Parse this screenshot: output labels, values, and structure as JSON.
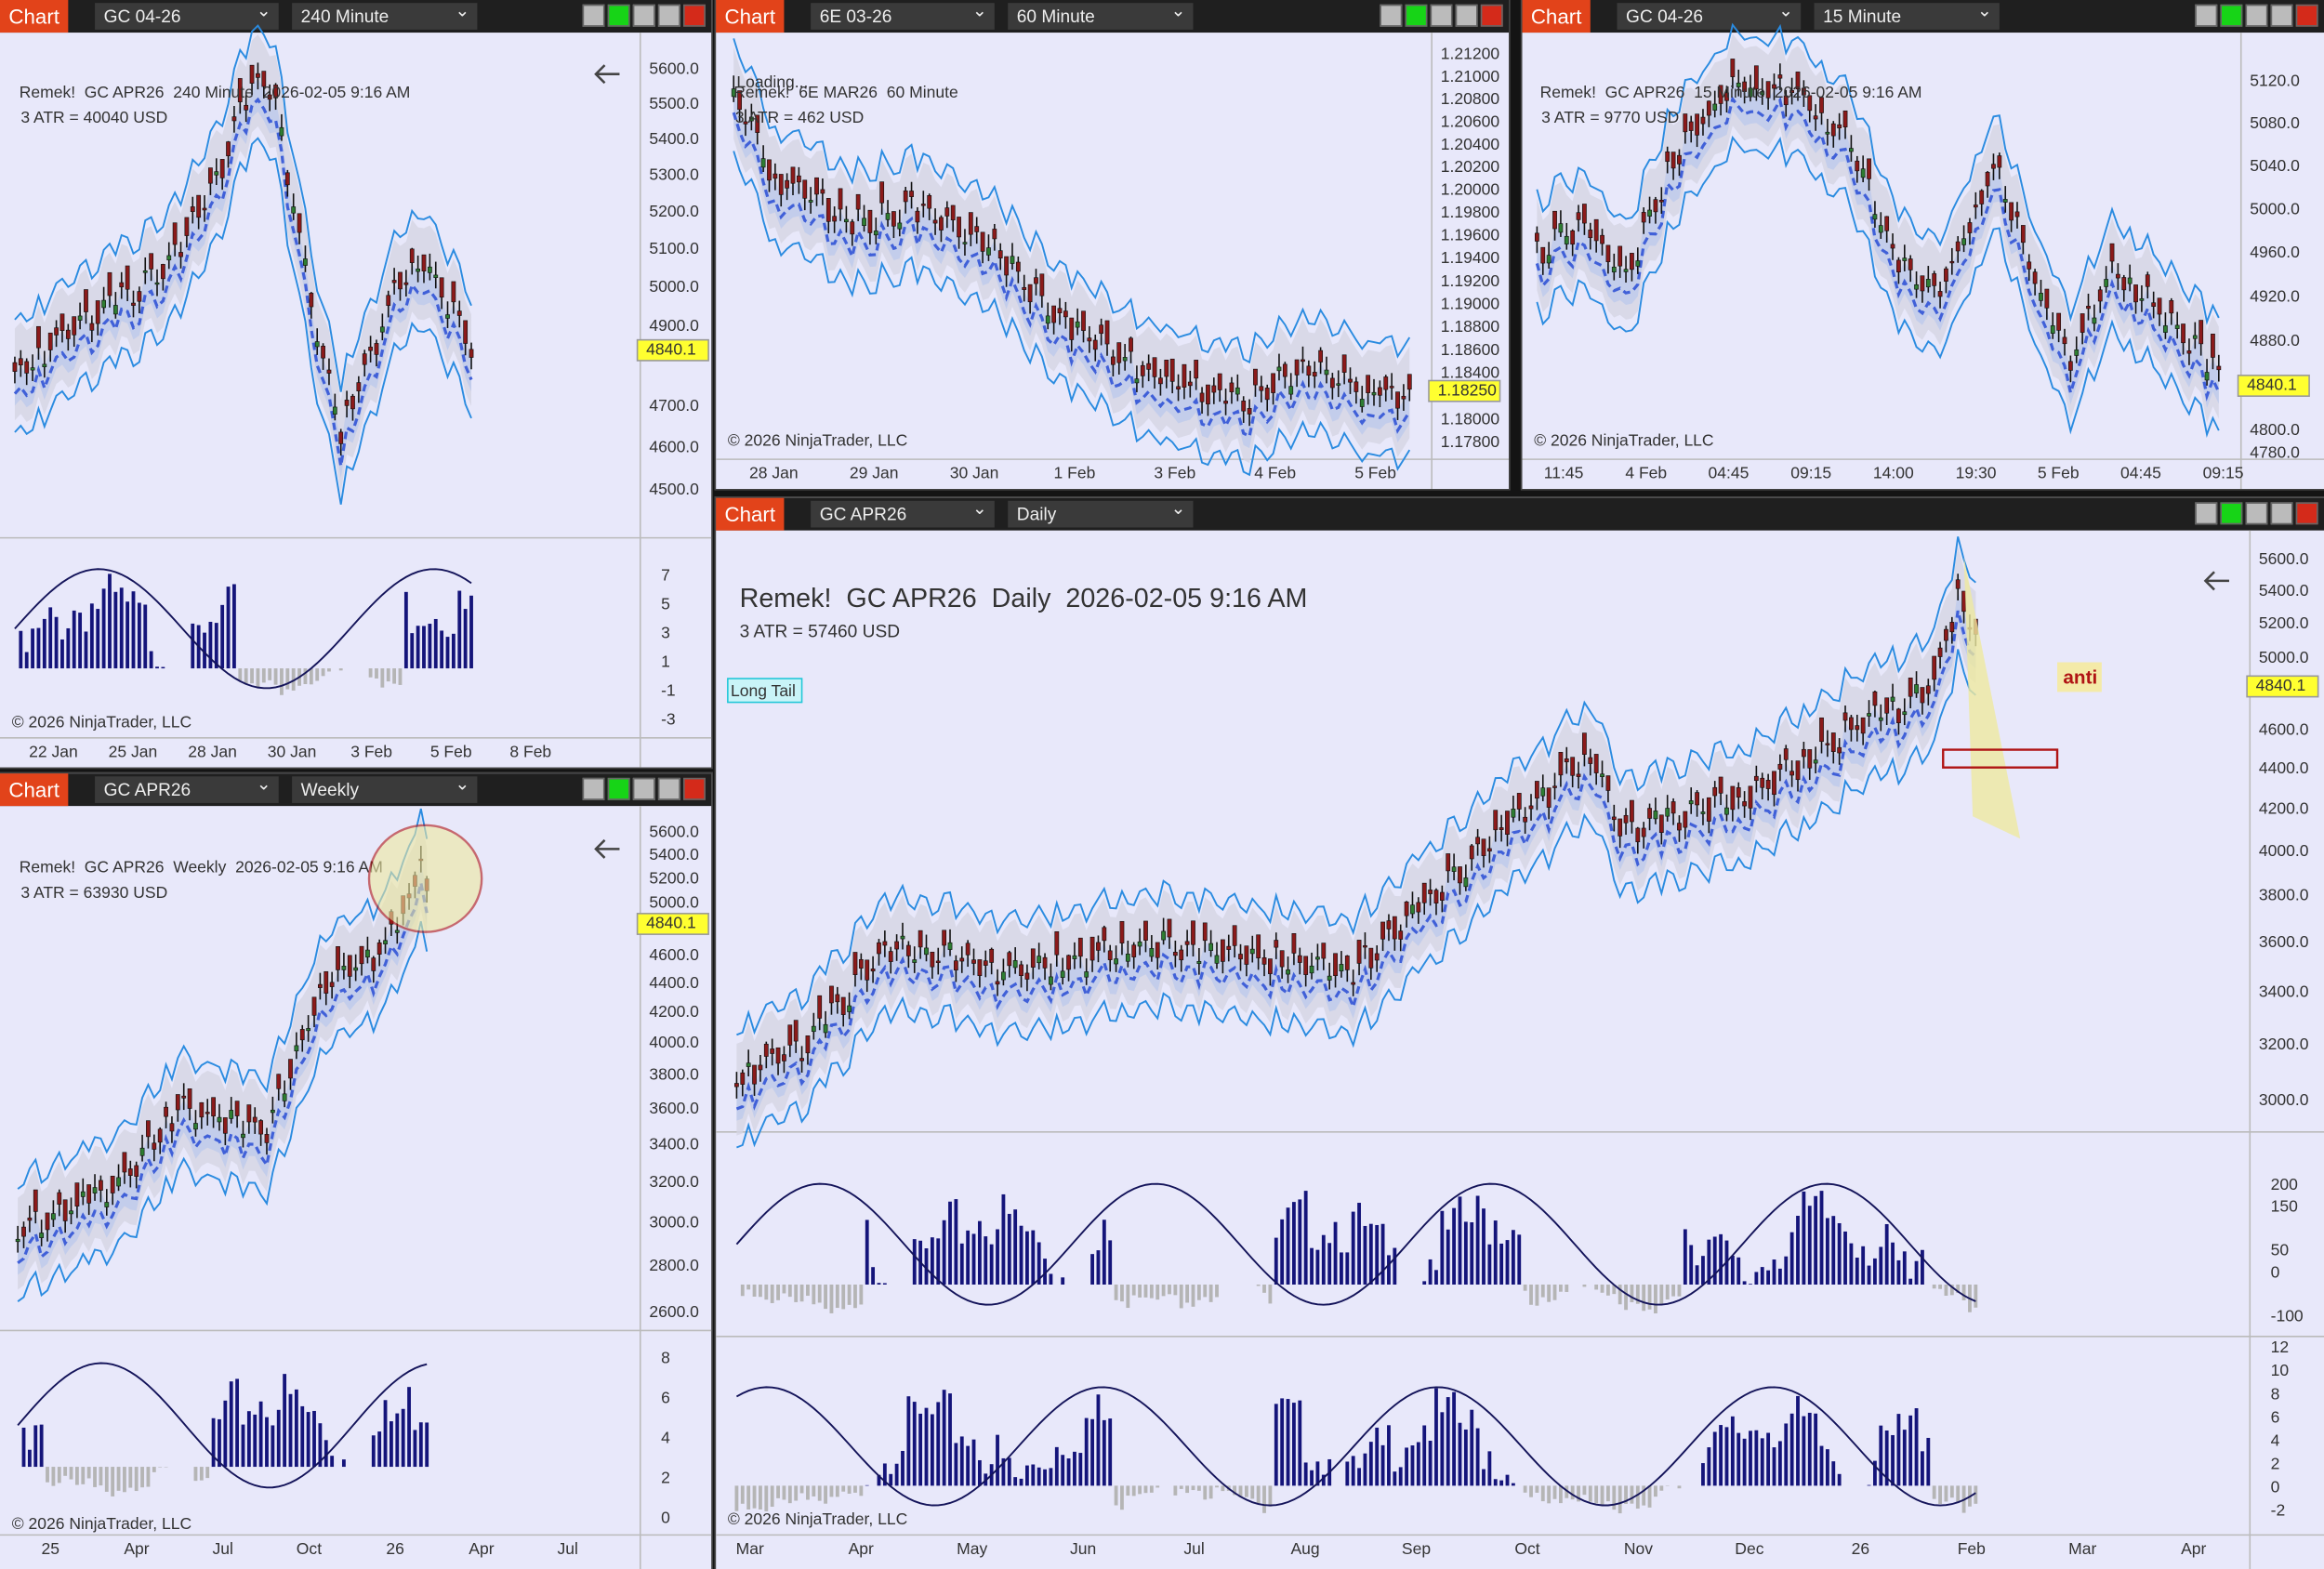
{
  "windows": [
    {
      "toolbar": {
        "label": "Chart",
        "instrument": "GC 04-26",
        "interval": "240 Minute"
      },
      "title": "Remek!  GC APR26  240 Minute  2026-02-05 9:16 AM",
      "atr": "3 ATR = 40040 USD",
      "price_axis": [
        "5600.0",
        "5500.0",
        "5400.0",
        "5300.0",
        "5200.0",
        "5100.0",
        "5000.0",
        "4900.0",
        "4700.0",
        "4600.0",
        "4500.0"
      ],
      "last_price": "4840.1",
      "indicator_axes": [
        [
          "7",
          "5",
          "3",
          "1",
          "-1",
          "-3"
        ]
      ],
      "time_axis": [
        "22 Jan",
        "25 Jan",
        "28 Jan",
        "30 Jan",
        "3 Feb",
        "5 Feb",
        "8 Feb"
      ],
      "copyright": "© 2026 NinjaTrader, LLC"
    },
    {
      "toolbar": {
        "label": "Chart",
        "instrument": "6E 03-26",
        "interval": "60 Minute"
      },
      "title": "Remek!  6E MAR26  60 Minute",
      "loading": "Loading...",
      "atr": "3 ATR = 462 USD",
      "price_axis": [
        "1.21200",
        "1.21000",
        "1.20800",
        "1.20600",
        "1.20400",
        "1.20200",
        "1.20000",
        "1.19800",
        "1.19600",
        "1.19400",
        "1.19200",
        "1.19000",
        "1.18800",
        "1.18600",
        "1.18400",
        "1.18000",
        "1.17800"
      ],
      "last_price": "1.18250",
      "indicator_axes": [],
      "time_axis": [
        "28 Jan",
        "29 Jan",
        "30 Jan",
        "1 Feb",
        "3 Feb",
        "4 Feb",
        "5 Feb"
      ],
      "copyright": "© 2026 NinjaTrader, LLC"
    },
    {
      "toolbar": {
        "label": "Chart",
        "instrument": "GC 04-26",
        "interval": "15 Minute"
      },
      "title": "Remek!  GC APR26  15 Minute  2026-02-05 9:16 AM",
      "atr": "3 ATR = 9770 USD",
      "price_axis": [
        "5120.0",
        "5080.0",
        "5040.0",
        "5000.0",
        "4960.0",
        "4920.0",
        "4880.0",
        "4800.0",
        "4780.0"
      ],
      "last_price": "4840.1",
      "indicator_axes": [],
      "time_axis": [
        "11:45",
        "4 Feb",
        "04:45",
        "09:15",
        "14:00",
        "19:30",
        "5 Feb",
        "04:45",
        "09:15"
      ],
      "copyright": "© 2026 NinjaTrader, LLC"
    },
    {
      "toolbar": {
        "label": "Chart",
        "instrument": "GC APR26",
        "interval": "Weekly"
      },
      "title": "Remek!  GC APR26  Weekly  2026-02-05 9:16 AM",
      "atr": "3 ATR = 63930 USD",
      "price_axis": [
        "5600.0",
        "5400.0",
        "5200.0",
        "5000.0",
        "4600.0",
        "4400.0",
        "4200.0",
        "4000.0",
        "3800.0",
        "3600.0",
        "3400.0",
        "3200.0",
        "3000.0",
        "2800.0",
        "2600.0"
      ],
      "last_price": "4840.1",
      "indicator_axes": [
        [
          "8",
          "6",
          "4",
          "2",
          "0"
        ]
      ],
      "time_axis": [
        "25",
        "Apr",
        "Jul",
        "Oct",
        "26",
        "Apr",
        "Jul"
      ],
      "copyright": "© 2026 NinjaTrader, LLC"
    },
    {
      "toolbar": {
        "label": "Chart",
        "instrument": "GC APR26",
        "interval": "Daily"
      },
      "title": "Remek!  GC APR26  Daily  2026-02-05 9:16 AM",
      "atr": "3 ATR = 57460 USD",
      "annotations": [
        "Long Tail",
        "anti"
      ],
      "price_axis": [
        "5600.0",
        "5400.0",
        "5200.0",
        "5000.0",
        "4600.0",
        "4400.0",
        "4200.0",
        "4000.0",
        "3800.0",
        "3600.0",
        "3400.0",
        "3200.0",
        "3000.0"
      ],
      "last_price": "4840.1",
      "indicator_axes": [
        [
          "200",
          "150",
          "50",
          "0",
          "-100"
        ],
        [
          "12",
          "10",
          "8",
          "6",
          "4",
          "2",
          "0",
          "-2"
        ]
      ],
      "time_axis": [
        "Mar",
        "Apr",
        "May",
        "Jun",
        "Jul",
        "Aug",
        "Sep",
        "Oct",
        "Nov",
        "Dec",
        "26",
        "Feb",
        "Mar",
        "Apr"
      ],
      "copyright": "© 2026 NinjaTrader, LLC"
    }
  ]
}
